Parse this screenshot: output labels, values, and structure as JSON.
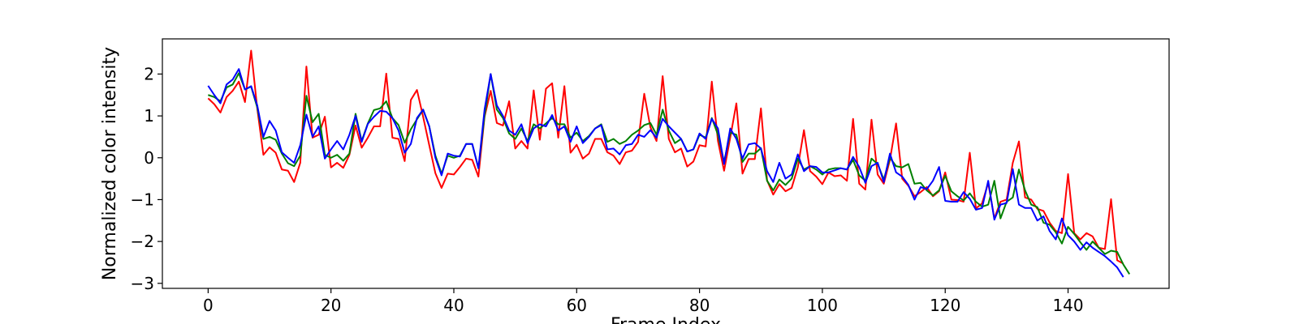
{
  "chart_data": {
    "type": "line",
    "title": "",
    "xlabel": "Frame Index",
    "ylabel": "Normalized color intensity",
    "xlim": [
      -7.45,
      156.45
    ],
    "ylim": [
      -3.12,
      2.84
    ],
    "xticks": [
      0,
      20,
      40,
      60,
      80,
      100,
      120,
      140
    ],
    "yticks": [
      -3,
      -2,
      -1,
      0,
      1,
      2
    ],
    "grid": false,
    "legend": "none",
    "x_start": 0,
    "x_step": 1,
    "series": [
      {
        "color": "#ff0000",
        "values": [
          1.42,
          1.28,
          1.08,
          1.45,
          1.6,
          1.82,
          1.33,
          2.56,
          1.17,
          0.07,
          0.25,
          0.12,
          -0.28,
          -0.31,
          -0.58,
          -0.12,
          2.18,
          0.48,
          0.55,
          0.98,
          -0.23,
          -0.12,
          -0.24,
          0.07,
          0.77,
          0.24,
          0.48,
          0.75,
          0.75,
          2.01,
          0.48,
          0.45,
          -0.08,
          1.38,
          1.62,
          0.98,
          0.3,
          -0.37,
          -0.72,
          -0.38,
          -0.4,
          -0.22,
          -0.02,
          -0.05,
          -0.45,
          0.98,
          1.6,
          0.83,
          0.77,
          1.35,
          0.22,
          0.4,
          0.22,
          1.61,
          0.43,
          1.65,
          1.78,
          0.48,
          1.71,
          0.12,
          0.31,
          -0.02,
          0.1,
          0.45,
          0.45,
          0.13,
          0.05,
          -0.15,
          0.13,
          0.17,
          0.38,
          1.53,
          0.73,
          0.4,
          1.95,
          0.45,
          0.13,
          0.22,
          -0.21,
          -0.09,
          0.3,
          0.27,
          1.82,
          0.4,
          -0.31,
          0.48,
          1.3,
          -0.38,
          -0.03,
          -0.03,
          1.18,
          -0.54,
          -0.88,
          -0.63,
          -0.8,
          -0.72,
          -0.23,
          0.66,
          -0.32,
          -0.45,
          -0.63,
          -0.35,
          -0.44,
          -0.42,
          -0.55,
          0.93,
          -0.62,
          -0.76,
          0.91,
          -0.4,
          -0.62,
          -0.05,
          0.82,
          -0.5,
          -0.67,
          -0.92,
          -0.82,
          -0.7,
          -0.92,
          -0.8,
          -0.35,
          -1.0,
          -1.01,
          -1.05,
          0.12,
          -1.21,
          -1.09,
          -0.6,
          -1.45,
          -1.05,
          -1.0,
          -0.12,
          0.39,
          -0.95,
          -1.0,
          -1.22,
          -1.27,
          -1.55,
          -1.75,
          -1.8,
          -0.39,
          -1.8,
          -1.95,
          -1.8,
          -1.88,
          -2.15,
          -2.18,
          -0.99,
          -2.45,
          -2.53
        ]
      },
      {
        "color": "#008000",
        "values": [
          1.5,
          1.45,
          1.35,
          1.68,
          1.75,
          2.02,
          1.63,
          1.7,
          1.2,
          0.45,
          0.5,
          0.43,
          0.1,
          -0.13,
          -0.2,
          0.05,
          1.48,
          0.85,
          1.05,
          0.07,
          0.0,
          0.07,
          -0.07,
          0.1,
          1.05,
          0.4,
          0.82,
          1.14,
          1.18,
          1.35,
          0.95,
          0.78,
          0.36,
          0.68,
          0.92,
          1.15,
          0.75,
          0.05,
          -0.38,
          0.05,
          0.0,
          0.05,
          0.33,
          0.33,
          -0.25,
          1.0,
          2.0,
          1.15,
          0.95,
          0.58,
          0.45,
          0.7,
          0.4,
          0.8,
          0.7,
          0.82,
          0.95,
          0.8,
          0.8,
          0.48,
          0.6,
          0.4,
          0.52,
          0.7,
          0.8,
          0.38,
          0.45,
          0.33,
          0.4,
          0.55,
          0.65,
          0.78,
          0.83,
          0.55,
          1.15,
          0.65,
          0.35,
          0.45,
          0.15,
          0.2,
          0.55,
          0.48,
          0.95,
          0.55,
          -0.1,
          0.6,
          0.55,
          -0.1,
          0.1,
          0.1,
          0.23,
          -0.55,
          -0.78,
          -0.52,
          -0.65,
          -0.5,
          -0.02,
          -0.28,
          -0.2,
          -0.28,
          -0.4,
          -0.28,
          -0.25,
          -0.25,
          -0.28,
          -0.05,
          -0.42,
          -0.55,
          -0.02,
          -0.15,
          -0.52,
          0.0,
          -0.2,
          -0.23,
          -0.15,
          -0.62,
          -0.6,
          -0.78,
          -0.9,
          -0.78,
          -0.43,
          -0.8,
          -0.92,
          -1.02,
          -0.85,
          -1.05,
          -1.17,
          -1.12,
          -0.55,
          -1.45,
          -1.05,
          -0.95,
          -0.28,
          -0.78,
          -1.12,
          -1.18,
          -1.55,
          -1.6,
          -1.78,
          -2.05,
          -1.65,
          -1.82,
          -2.02,
          -2.2,
          -2.0,
          -2.15,
          -2.3,
          -2.22,
          -2.25,
          -2.55,
          -2.78
        ]
      },
      {
        "color": "#0000ff",
        "values": [
          1.72,
          1.5,
          1.3,
          1.75,
          1.87,
          2.12,
          1.63,
          1.71,
          1.25,
          0.5,
          0.88,
          0.65,
          0.13,
          0.0,
          -0.12,
          0.3,
          1.03,
          0.5,
          0.75,
          -0.02,
          0.2,
          0.4,
          0.2,
          0.55,
          1.0,
          0.38,
          0.81,
          0.98,
          1.12,
          1.1,
          0.95,
          0.65,
          0.12,
          0.33,
          0.95,
          1.15,
          0.75,
          0.0,
          -0.42,
          0.1,
          0.05,
          0.03,
          0.33,
          0.33,
          -0.25,
          1.15,
          2.0,
          1.25,
          1.0,
          0.65,
          0.55,
          0.8,
          0.35,
          0.7,
          0.8,
          0.75,
          1.02,
          0.65,
          0.75,
          0.38,
          0.75,
          0.35,
          0.5,
          0.7,
          0.78,
          0.2,
          0.22,
          0.08,
          0.3,
          0.33,
          0.55,
          0.5,
          0.66,
          0.48,
          0.93,
          0.75,
          0.6,
          0.45,
          0.15,
          0.2,
          0.58,
          0.45,
          0.93,
          0.7,
          -0.15,
          0.7,
          0.45,
          -0.02,
          0.32,
          0.35,
          0.22,
          -0.32,
          -0.58,
          -0.12,
          -0.5,
          -0.4,
          0.08,
          -0.32,
          -0.2,
          -0.22,
          -0.35,
          -0.35,
          -0.3,
          -0.25,
          -0.28,
          0.02,
          -0.22,
          -0.6,
          -0.2,
          -0.12,
          -0.58,
          0.1,
          -0.35,
          -0.45,
          -0.65,
          -1.0,
          -0.7,
          -0.75,
          -0.55,
          -0.22,
          -1.03,
          -1.05,
          -1.05,
          -0.82,
          -0.98,
          -1.24,
          -1.2,
          -0.55,
          -1.48,
          -1.12,
          -1.08,
          -0.27,
          -1.12,
          -1.2,
          -1.2,
          -1.5,
          -1.4,
          -1.75,
          -1.95,
          -1.45,
          -1.85,
          -2.0,
          -2.2,
          -2.02,
          -2.15,
          -2.25,
          -2.35,
          -2.48,
          -2.62,
          -2.85
        ]
      }
    ]
  }
}
